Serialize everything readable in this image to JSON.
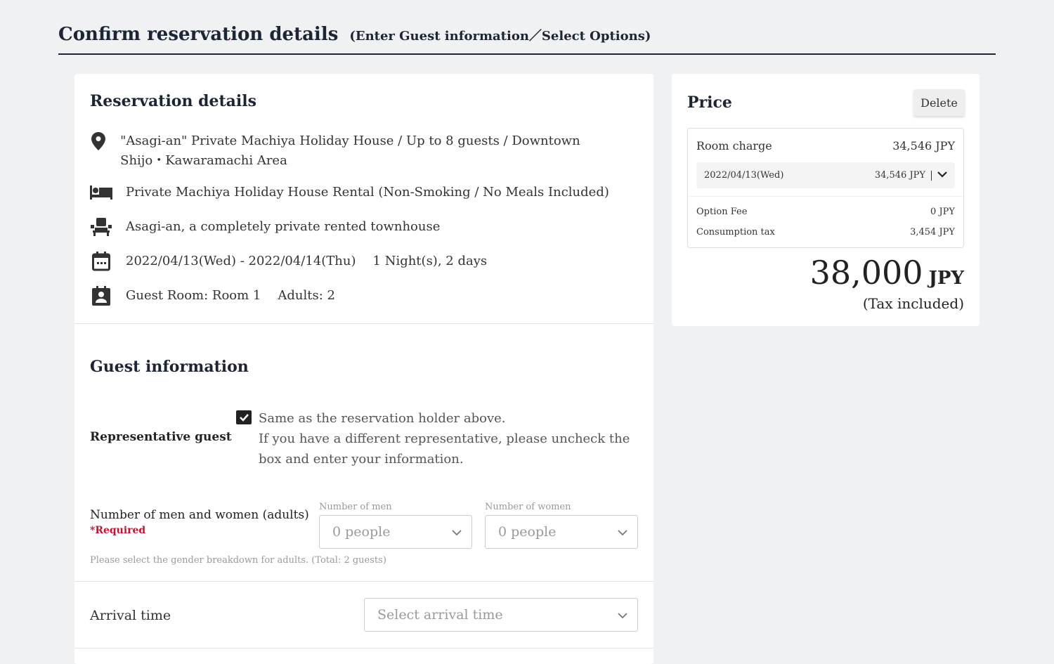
{
  "header": {
    "title": "Confirm reservation details",
    "subtitle": "(Enter Guest information／Select Options)"
  },
  "reservation": {
    "title": "Reservation details",
    "location": "\"Asagi-an\" Private Machiya Holiday House / Up to 8 guests / Downtown Shijo・Kawaramachi Area",
    "plan": "Private Machiya Holiday House Rental (Non-Smoking / No Meals Included)",
    "room": "Asagi-an, a completely private rented townhouse",
    "dates": "2022/04/13(Wed) - 2022/04/14(Thu)",
    "nights": "1 Night(s), 2 days",
    "guest_room": "Guest Room: Room 1",
    "adults": "Adults: 2"
  },
  "guest": {
    "title": "Guest information",
    "rep_label": "Representative guest",
    "rep_checked": true,
    "rep_line1": "Same as the reservation holder above.",
    "rep_line2": "If you have a different representative, please uncheck the box and enter your information.",
    "gender_label": "Number of men and women (adults)",
    "required": "*Required",
    "men_label": "Number of men",
    "men_value": "0 people",
    "women_label": "Number of women",
    "women_value": "0 people",
    "gender_hint": "Please select the gender breakdown for adults. (Total: 2 guests)",
    "arrival_label": "Arrival time",
    "arrival_placeholder": "Select arrival time"
  },
  "price": {
    "title": "Price",
    "delete": "Delete",
    "room_charge_label": "Room charge",
    "room_charge": "34,546 JPY",
    "night_date": "2022/04/13(Wed)",
    "night_price": "34,546 JPY",
    "option_label": "Option Fee",
    "option": "0 JPY",
    "tax_label": "Consumption tax",
    "tax": "3,454 JPY",
    "total": "38,000",
    "currency": "JPY",
    "tax_note": "(Tax included)"
  },
  "colors": {
    "accent": "#1d2433",
    "required": "#c8102e"
  }
}
